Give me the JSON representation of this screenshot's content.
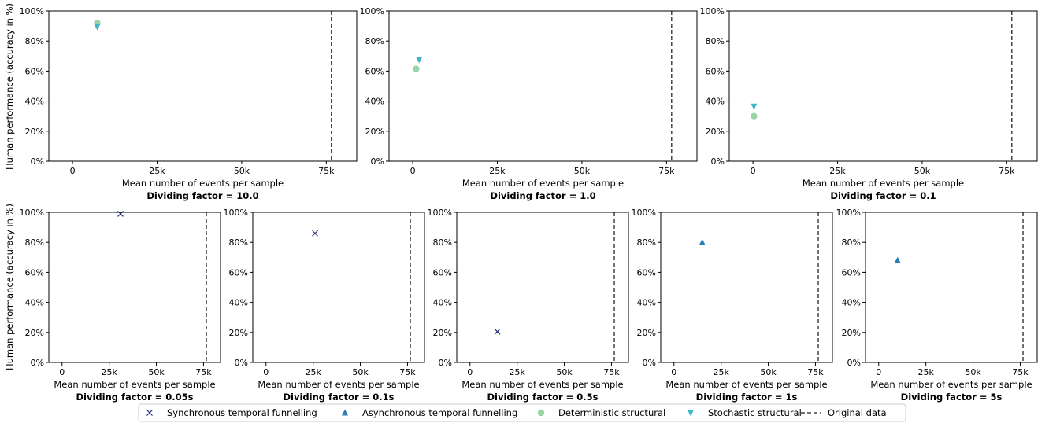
{
  "figure": {
    "ylabel": "Human performance (accuracy in %)"
  },
  "colors": {
    "sync": "#1f2a7a",
    "async": "#2a7fb8",
    "det": "#99d4a8",
    "stoch": "#3fb6c8",
    "original": "#444444"
  },
  "legend": [
    {
      "key": "sync",
      "label": "Synchronous temporal funnelling",
      "marker": "x"
    },
    {
      "key": "async",
      "label": "Asynchronous temporal funnelling",
      "marker": "triangle-up"
    },
    {
      "key": "det",
      "label": "Deterministic structural",
      "marker": "circle"
    },
    {
      "key": "stoch",
      "label": "Stochastic structural",
      "marker": "triangle-down"
    },
    {
      "key": "original",
      "label": "Original data",
      "marker": "dashed-line"
    }
  ],
  "chart_data": [
    {
      "type": "scatter",
      "subtitle": "Dividing factor = 10.0",
      "xlabel": "Mean number of events per sample",
      "xlim": [
        -7000,
        84000
      ],
      "ylim": [
        0,
        100
      ],
      "xticks": [
        0,
        25000,
        50000,
        75000
      ],
      "xticklabels": [
        "0",
        "25k",
        "50k",
        "75k"
      ],
      "yticks": [
        0,
        20,
        40,
        60,
        80,
        100
      ],
      "yticklabels": [
        "0%",
        "20%",
        "40%",
        "60%",
        "80%",
        "100%"
      ],
      "vline": 76500,
      "series": [
        {
          "key": "det",
          "points": [
            {
              "x": 7300,
              "y": 92
            }
          ]
        },
        {
          "key": "stoch",
          "points": [
            {
              "x": 7300,
              "y": 89.5
            }
          ]
        }
      ]
    },
    {
      "type": "scatter",
      "subtitle": "Dividing factor = 1.0",
      "xlabel": "Mean number of events per sample",
      "xlim": [
        -7000,
        84000
      ],
      "ylim": [
        0,
        100
      ],
      "xticks": [
        0,
        25000,
        50000,
        75000
      ],
      "xticklabels": [
        "0",
        "25k",
        "50k",
        "75k"
      ],
      "yticks": [
        0,
        20,
        40,
        60,
        80,
        100
      ],
      "yticklabels": [
        "0%",
        "20%",
        "40%",
        "60%",
        "80%",
        "100%"
      ],
      "vline": 76500,
      "series": [
        {
          "key": "det",
          "points": [
            {
              "x": 1000,
              "y": 61.5
            }
          ]
        },
        {
          "key": "stoch",
          "points": [
            {
              "x": 1900,
              "y": 67.5
            }
          ]
        }
      ]
    },
    {
      "type": "scatter",
      "subtitle": "Dividing factor = 0.1",
      "xlabel": "Mean number of events per sample",
      "xlim": [
        -7000,
        84000
      ],
      "ylim": [
        0,
        100
      ],
      "xticks": [
        0,
        25000,
        50000,
        75000
      ],
      "xticklabels": [
        "0",
        "25k",
        "50k",
        "75k"
      ],
      "yticks": [
        0,
        20,
        40,
        60,
        80,
        100
      ],
      "yticklabels": [
        "0%",
        "20%",
        "40%",
        "60%",
        "80%",
        "100%"
      ],
      "vline": 76500,
      "series": [
        {
          "key": "det",
          "points": [
            {
              "x": 300,
              "y": 30
            }
          ]
        },
        {
          "key": "stoch",
          "points": [
            {
              "x": 300,
              "y": 36.5
            }
          ]
        }
      ]
    },
    {
      "type": "scatter",
      "subtitle": "Dividing factor = 0.05s",
      "xlabel": "Mean number of events per sample",
      "xlim": [
        -7000,
        84000
      ],
      "ylim": [
        0,
        100
      ],
      "xticks": [
        0,
        25000,
        50000,
        75000
      ],
      "xticklabels": [
        "0",
        "25k",
        "50k",
        "75k"
      ],
      "yticks": [
        0,
        20,
        40,
        60,
        80,
        100
      ],
      "yticklabels": [
        "0%",
        "20%",
        "40%",
        "60%",
        "80%",
        "100%"
      ],
      "vline": 76500,
      "series": [
        {
          "key": "sync",
          "points": [
            {
              "x": 31000,
              "y": 99
            }
          ]
        }
      ]
    },
    {
      "type": "scatter",
      "subtitle": "Dividing factor = 0.1s",
      "xlabel": "Mean number of events per sample",
      "xlim": [
        -7000,
        84000
      ],
      "ylim": [
        0,
        100
      ],
      "xticks": [
        0,
        25000,
        50000,
        75000
      ],
      "xticklabels": [
        "0",
        "25k",
        "50k",
        "75k"
      ],
      "yticks": [
        0,
        20,
        40,
        60,
        80,
        100
      ],
      "yticklabels": [
        "0%",
        "20%",
        "40%",
        "60%",
        "80%",
        "100%"
      ],
      "vline": 76500,
      "series": [
        {
          "key": "sync",
          "points": [
            {
              "x": 26000,
              "y": 86
            }
          ]
        }
      ]
    },
    {
      "type": "scatter",
      "subtitle": "Dividing factor = 0.5s",
      "xlabel": "Mean number of events per sample",
      "xlim": [
        -7000,
        84000
      ],
      "ylim": [
        0,
        100
      ],
      "xticks": [
        0,
        25000,
        50000,
        75000
      ],
      "xticklabels": [
        "0",
        "25k",
        "50k",
        "75k"
      ],
      "yticks": [
        0,
        20,
        40,
        60,
        80,
        100
      ],
      "yticklabels": [
        "0%",
        "20%",
        "40%",
        "60%",
        "80%",
        "100%"
      ],
      "vline": 76500,
      "series": [
        {
          "key": "sync",
          "points": [
            {
              "x": 14500,
              "y": 20.5
            }
          ]
        }
      ]
    },
    {
      "type": "scatter",
      "subtitle": "Dividing factor = 1s",
      "xlabel": "Mean number of events per sample",
      "xlim": [
        -7000,
        84000
      ],
      "ylim": [
        0,
        100
      ],
      "xticks": [
        0,
        25000,
        50000,
        75000
      ],
      "xticklabels": [
        "0",
        "25k",
        "50k",
        "75k"
      ],
      "yticks": [
        0,
        20,
        40,
        60,
        80,
        100
      ],
      "yticklabels": [
        "0%",
        "20%",
        "40%",
        "60%",
        "80%",
        "100%"
      ],
      "vline": 76500,
      "series": [
        {
          "key": "async",
          "points": [
            {
              "x": 15000,
              "y": 80
            }
          ]
        }
      ]
    },
    {
      "type": "scatter",
      "subtitle": "Dividing factor = 5s",
      "xlabel": "Mean number of events per sample",
      "xlim": [
        -7000,
        84000
      ],
      "ylim": [
        0,
        100
      ],
      "xticks": [
        0,
        25000,
        50000,
        75000
      ],
      "xticklabels": [
        "0",
        "25k",
        "50k",
        "75k"
      ],
      "yticks": [
        0,
        20,
        40,
        60,
        80,
        100
      ],
      "yticklabels": [
        "0%",
        "20%",
        "40%",
        "60%",
        "80%",
        "100%"
      ],
      "vline": 76500,
      "series": [
        {
          "key": "async",
          "points": [
            {
              "x": 10000,
              "y": 68
            }
          ]
        }
      ]
    }
  ]
}
